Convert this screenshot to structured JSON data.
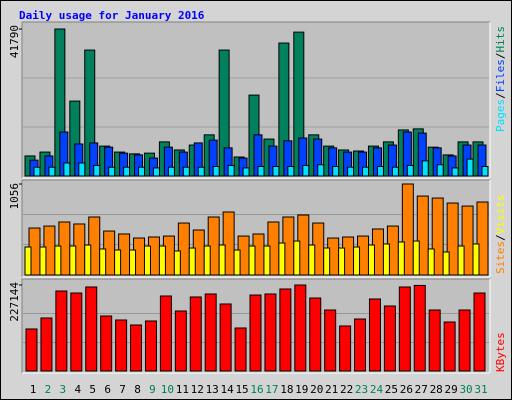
{
  "title": "Daily usage for January 2016",
  "legend_separator": "/",
  "categories": [
    "1",
    "2",
    "3",
    "4",
    "5",
    "6",
    "7",
    "8",
    "9",
    "10",
    "11",
    "12",
    "13",
    "14",
    "15",
    "16",
    "17",
    "18",
    "19",
    "20",
    "21",
    "22",
    "23",
    "24",
    "25",
    "26",
    "27",
    "28",
    "29",
    "30",
    "31"
  ],
  "category_colors": [
    "#000000",
    "#00805c",
    "#00805c",
    "#000000",
    "#000000",
    "#000000",
    "#000000",
    "#000000",
    "#00805c",
    "#00805c",
    "#000000",
    "#000000",
    "#000000",
    "#000000",
    "#000000",
    "#00805c",
    "#00805c",
    "#000000",
    "#000000",
    "#000000",
    "#000000",
    "#000000",
    "#00805c",
    "#00805c",
    "#000000",
    "#000000",
    "#000000",
    "#000000",
    "#000000",
    "#00805c",
    "#00805c"
  ],
  "chart_data": [
    {
      "type": "bar",
      "ylim": [
        0,
        41790
      ],
      "yticks": [
        41790
      ],
      "series": [
        {
          "name": "Pages",
          "color": "#00e0ff",
          "values": [
            2500,
            2500,
            3700,
            3700,
            3000,
            2500,
            2500,
            2500,
            2300,
            2500,
            2500,
            2500,
            2700,
            3000,
            2300,
            2700,
            2700,
            2700,
            3000,
            3200,
            2700,
            2500,
            2500,
            2700,
            2500,
            3000,
            4300,
            3200,
            2300,
            4800,
            2700
          ]
        },
        {
          "name": "Files",
          "color": "#0040ff",
          "values": [
            4500,
            5700,
            12500,
            9100,
            9400,
            8200,
            6500,
            6000,
            5100,
            8200,
            6800,
            9400,
            10200,
            8000,
            5100,
            11700,
            8500,
            10000,
            10800,
            10500,
            8000,
            6800,
            6800,
            8000,
            8800,
            12500,
            12200,
            8000,
            5700,
            8800,
            8800
          ]
        },
        {
          "name": "Hits",
          "color": "#00805c",
          "values": [
            5700,
            6800,
            41790,
            21300,
            35800,
            8500,
            6800,
            6300,
            6500,
            9700,
            7400,
            8800,
            11700,
            35800,
            5400,
            23000,
            10500,
            37800,
            40900,
            11700,
            8500,
            7400,
            7100,
            8500,
            9700,
            13100,
            13400,
            8200,
            6000,
            9700,
            9700
          ]
        }
      ]
    },
    {
      "type": "bar",
      "ylim": [
        0,
        1056
      ],
      "yticks": [
        1056
      ],
      "series": [
        {
          "name": "Sites",
          "color": "#ff8000",
          "values": [
            545,
            568,
            615,
            592,
            673,
            510,
            476,
            429,
            441,
            452,
            603,
            522,
            673,
            731,
            452,
            476,
            615,
            673,
            696,
            603,
            429,
            441,
            452,
            534,
            568,
            1056,
            916,
            893,
            835,
            800,
            847
          ]
        },
        {
          "name": "Visits",
          "color": "#ffff00",
          "values": [
            325,
            325,
            336,
            336,
            348,
            302,
            290,
            290,
            336,
            336,
            279,
            313,
            336,
            348,
            290,
            336,
            336,
            371,
            394,
            348,
            313,
            313,
            325,
            348,
            360,
            383,
            394,
            302,
            267,
            336,
            360
          ]
        }
      ]
    },
    {
      "type": "bar",
      "ylim": [
        0,
        227144
      ],
      "yticks": [
        227144
      ],
      "series": [
        {
          "name": "KBytes",
          "color": "#ff0000",
          "values": [
            111000,
            140000,
            211300,
            206000,
            221900,
            145300,
            134700,
            121500,
            132100,
            198100,
            158500,
            195500,
            203400,
            177000,
            113600,
            200700,
            203400,
            216600,
            227144,
            192800,
            161100,
            118900,
            137300,
            190200,
            171700,
            221900,
            226000,
            161100,
            129400,
            161100,
            206000
          ]
        }
      ]
    }
  ]
}
